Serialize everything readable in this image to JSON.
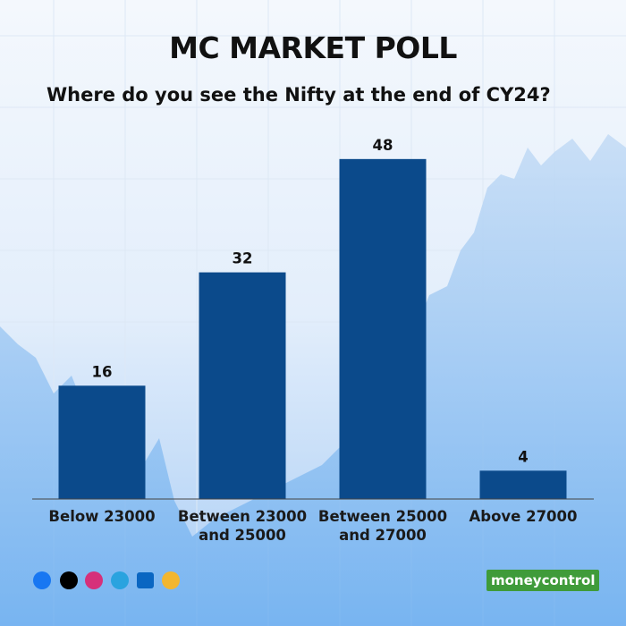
{
  "chart_data": {
    "type": "bar",
    "title": "MC MARKET POLL",
    "subtitle": "Where do you see the Nifty at the end of CY24?",
    "categories": [
      "Below 23000",
      "Between 23000 and 25000",
      "Between 25000 and 27000",
      "Above 27000"
    ],
    "values": [
      16,
      32,
      48,
      4
    ],
    "color": "#0b4a8b"
  },
  "footer": {
    "brand": "moneycontrol"
  }
}
